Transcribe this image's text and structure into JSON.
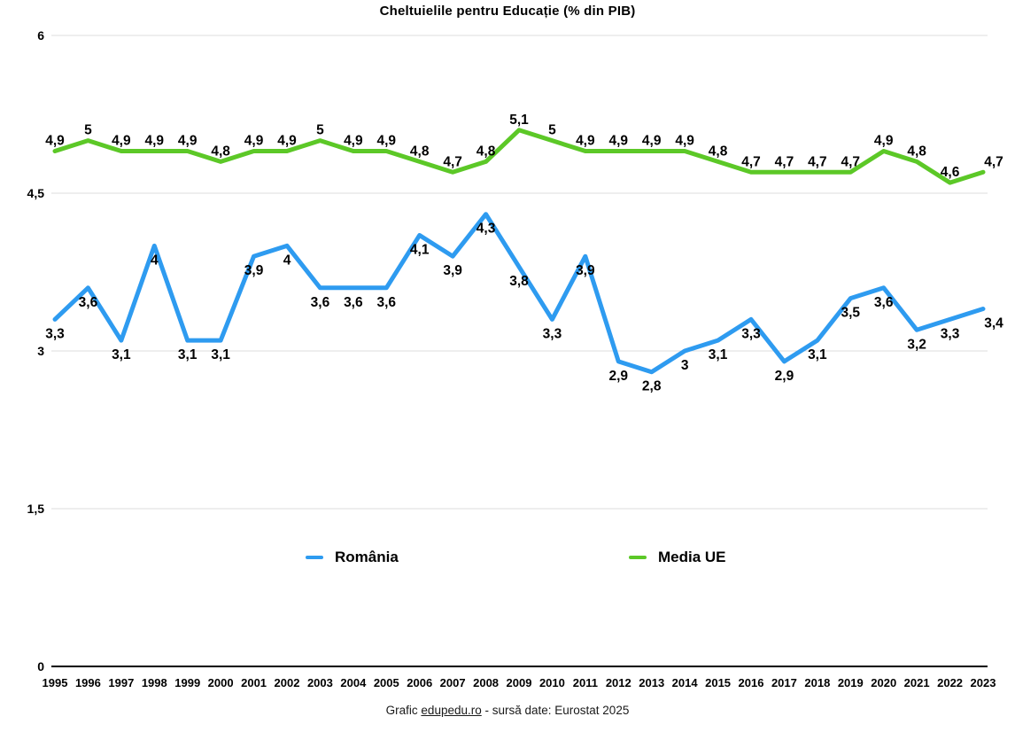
{
  "title": "Cheltuielile pentru Educație (% din PIB)",
  "legend": [
    {
      "label": "România",
      "color": "#2e9bf0"
    },
    {
      "label": "Media UE",
      "color": "#5cc827"
    }
  ],
  "footer": {
    "prefix": "Grafic ",
    "link": "edupedu.ro",
    "suffix": " - sursă date: Eurostat 2025"
  },
  "chart_data": {
    "type": "line",
    "title": "Cheltuielile pentru Educație (% din PIB)",
    "x": [
      1995,
      1996,
      1997,
      1998,
      1999,
      2000,
      2001,
      2002,
      2003,
      2004,
      2005,
      2006,
      2007,
      2008,
      2009,
      2010,
      2011,
      2012,
      2013,
      2014,
      2015,
      2016,
      2017,
      2018,
      2019,
      2020,
      2021,
      2022,
      2023
    ],
    "series": [
      {
        "name": "România",
        "color": "#2e9bf0",
        "label_position": "below",
        "values": [
          3.3,
          3.6,
          3.1,
          4,
          3.1,
          3.1,
          3.9,
          4,
          3.6,
          3.6,
          3.6,
          4.1,
          3.9,
          4.3,
          3.8,
          3.3,
          3.9,
          2.9,
          2.8,
          3,
          3.1,
          3.3,
          2.9,
          3.1,
          3.5,
          3.6,
          3.2,
          3.3,
          3.4
        ]
      },
      {
        "name": "Media UE",
        "color": "#5cc827",
        "label_position": "above",
        "values": [
          4.9,
          5,
          4.9,
          4.9,
          4.9,
          4.8,
          4.9,
          4.9,
          5,
          4.9,
          4.9,
          4.8,
          4.7,
          4.8,
          5.1,
          5,
          4.9,
          4.9,
          4.9,
          4.9,
          4.8,
          4.7,
          4.7,
          4.7,
          4.7,
          4.9,
          4.8,
          4.6,
          4.7
        ]
      }
    ],
    "ylim": [
      0,
      6
    ],
    "yticks": [
      0,
      1.5,
      3,
      4.5,
      6
    ],
    "ytick_labels": [
      "0",
      "1,5",
      "3",
      "4,5",
      "6"
    ],
    "decimal_separator": ",",
    "grid": true,
    "legend_position": "bottom",
    "axis_color": "#000000",
    "gridline_color": "#dcdcdc"
  }
}
